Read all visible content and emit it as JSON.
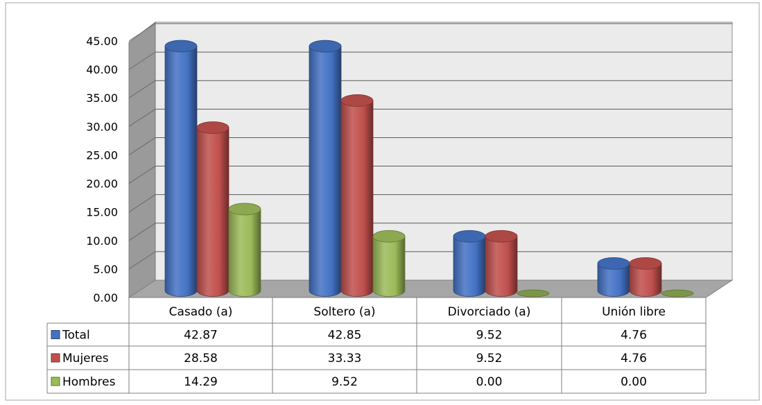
{
  "chart_data": {
    "type": "bar",
    "style": "3d-cylinder",
    "categories": [
      "Casado (a)",
      "Soltero (a)",
      "Divorciado (a)",
      "Unión libre"
    ],
    "series": [
      {
        "name": "Total",
        "values": [
          42.87,
          42.85,
          9.52,
          4.76
        ],
        "color": "#4472C4"
      },
      {
        "name": "Mujeres",
        "values": [
          28.58,
          33.33,
          9.52,
          4.76
        ],
        "color": "#C0504D"
      },
      {
        "name": "Hombres",
        "values": [
          14.29,
          9.52,
          0.0,
          0.0
        ],
        "color": "#9BBB59"
      }
    ],
    "yticks": [
      "0.00",
      "5.00",
      "10.00",
      "15.00",
      "20.00",
      "25.00",
      "30.00",
      "35.00",
      "40.00",
      "45.00"
    ],
    "ylim": [
      0,
      45
    ],
    "grid": true,
    "legend": "data-table",
    "table_cells": [
      [
        "42.87",
        "42.85",
        "9.52",
        "4.76"
      ],
      [
        "28.58",
        "33.33",
        "9.52",
        "4.76"
      ],
      [
        "14.29",
        "9.52",
        "0.00",
        "0.00"
      ]
    ]
  }
}
